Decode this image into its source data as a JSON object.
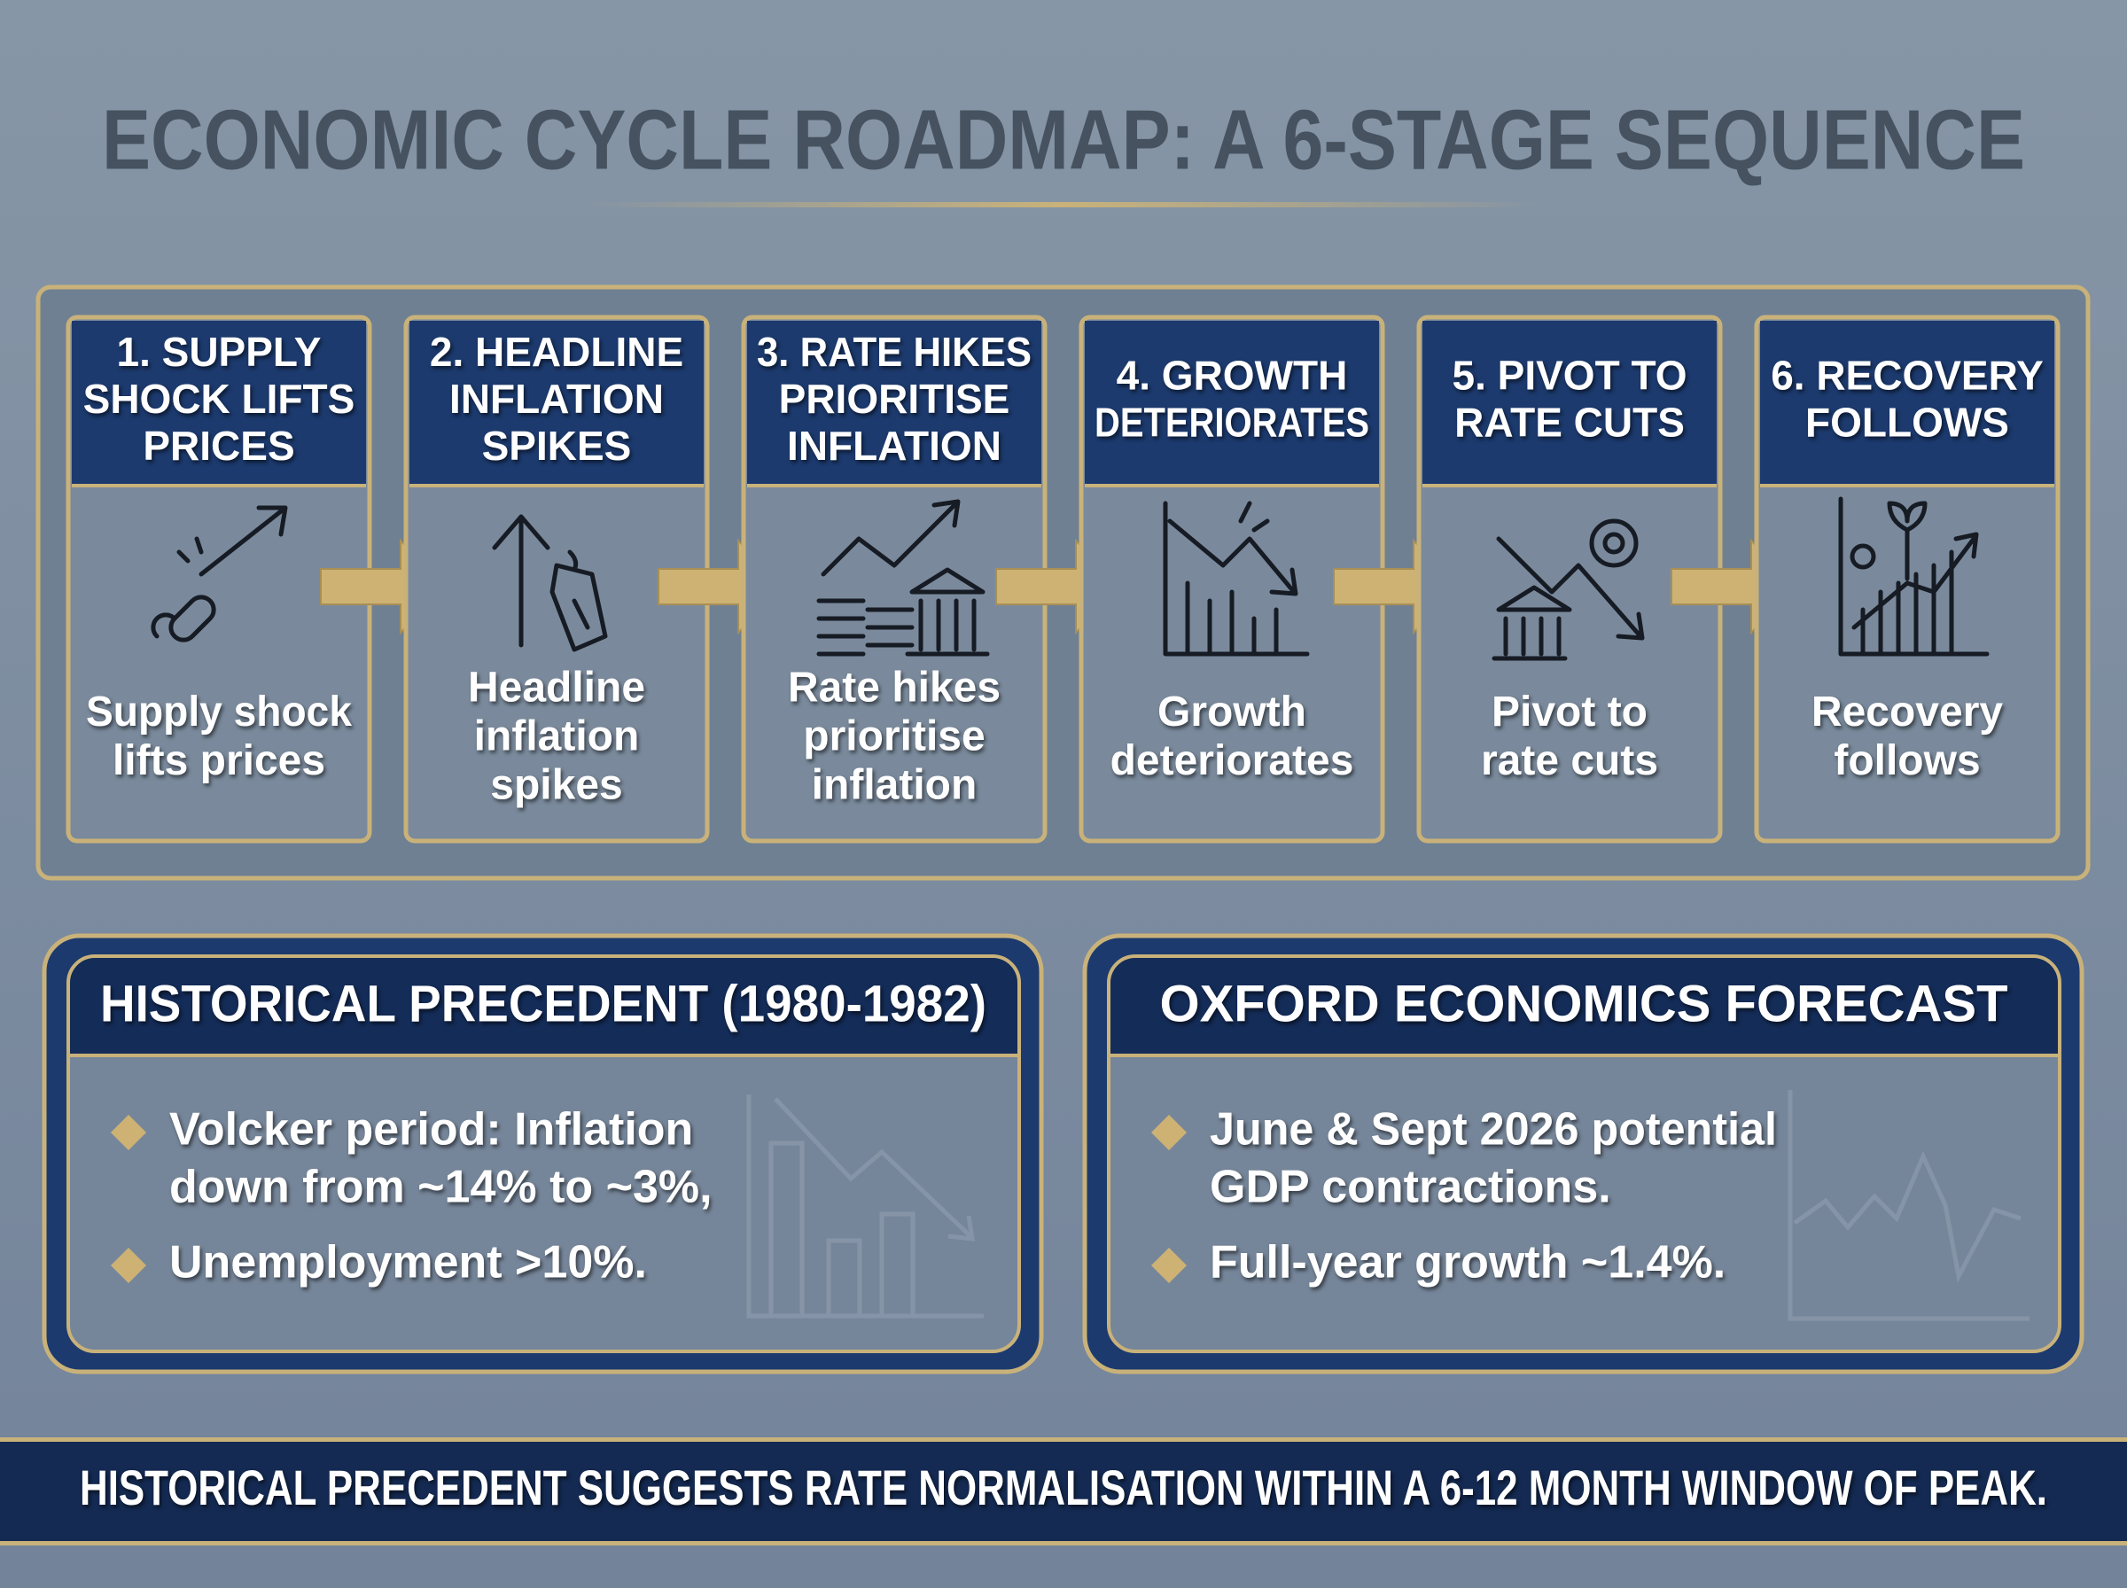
{
  "title": "ECONOMIC CYCLE ROADMAP: A 6-STAGE SEQUENCE",
  "stages": [
    {
      "header": [
        "1. SUPPLY",
        "SHOCK LIFTS",
        "PRICES"
      ],
      "description": [
        "Supply shock",
        "lifts prices"
      ]
    },
    {
      "header": [
        "2. HEADLINE",
        "INFLATION",
        "SPIKES"
      ],
      "description": [
        "Headline",
        "inflation",
        "spikes"
      ]
    },
    {
      "header": [
        "3. RATE HIKES",
        "PRIORITISE",
        "INFLATION"
      ],
      "description": [
        "Rate hikes",
        "prioritise",
        "inflation"
      ]
    },
    {
      "header": [
        "4. GROWTH",
        "DETERIORATES"
      ],
      "description": [
        "Growth",
        "deteriorates"
      ]
    },
    {
      "header": [
        "5. PIVOT TO",
        "RATE CUTS"
      ],
      "description": [
        "Pivot to",
        "rate cuts"
      ]
    },
    {
      "header": [
        "6. RECOVERY",
        "FOLLOWS"
      ],
      "description": [
        "Recovery",
        "follows"
      ]
    }
  ],
  "panels": [
    {
      "title": "HISTORICAL PRECEDENT (1980-1982)",
      "bullets": [
        [
          "Volcker period: Inflation",
          "down from ~14% to ~3%,"
        ],
        [
          "Unemployment >10%."
        ]
      ]
    },
    {
      "title": "OXFORD ECONOMICS FORECAST",
      "bullets": [
        [
          "June & Sept 2026 potential",
          "GDP contractions."
        ],
        [
          "Full-year growth ~1.4%."
        ]
      ]
    }
  ],
  "footer": "HISTORICAL PRECEDENT SUGGESTS RATE NORMALISATION WITHIN A 6-12 MONTH WINDOW OF PEAK."
}
